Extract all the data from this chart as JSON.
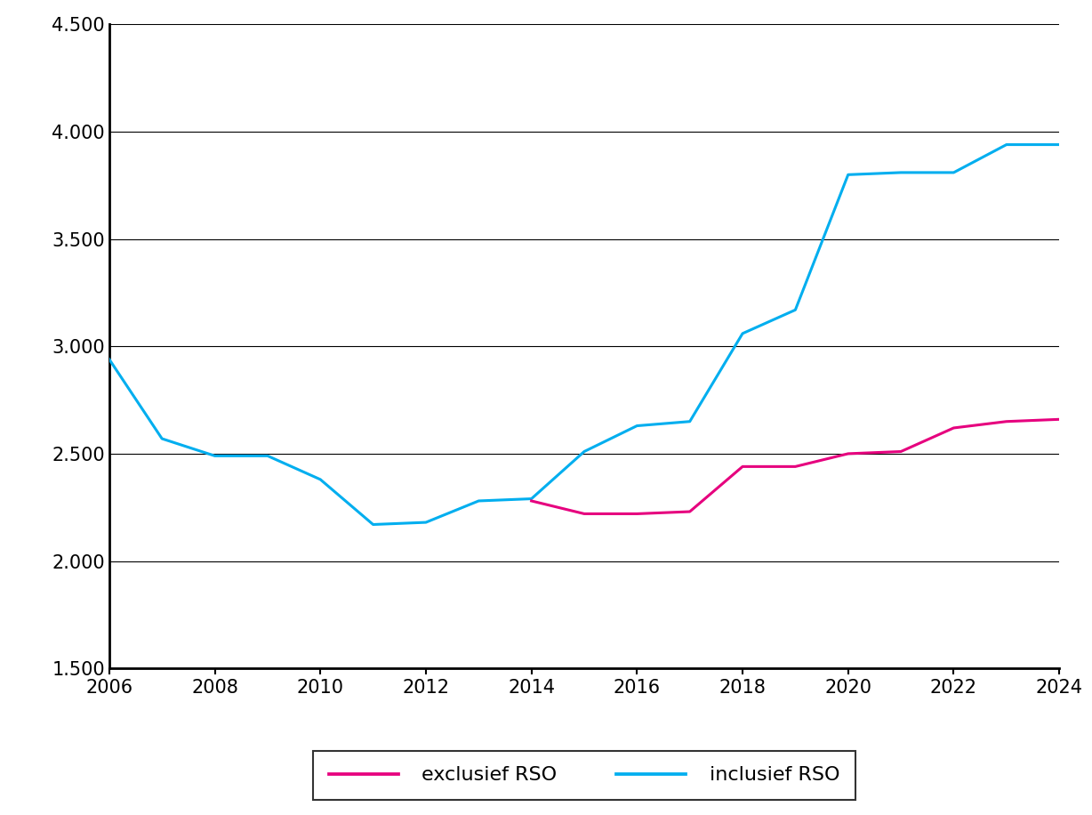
{
  "years_excl": [
    2014,
    2015,
    2016,
    2017,
    2018,
    2019,
    2020,
    2021,
    2022,
    2023,
    2024
  ],
  "values_excl": [
    2280,
    2220,
    2220,
    2230,
    2440,
    2440,
    2500,
    2510,
    2620,
    2650,
    2660
  ],
  "years_incl": [
    2006,
    2007,
    2008,
    2009,
    2010,
    2011,
    2012,
    2013,
    2014,
    2015,
    2016,
    2017,
    2018,
    2019,
    2020,
    2021,
    2022,
    2023,
    2024
  ],
  "values_incl": [
    2940,
    2570,
    2490,
    2490,
    2380,
    2170,
    2180,
    2280,
    2290,
    2510,
    2630,
    2650,
    3060,
    3170,
    3800,
    3810,
    3810,
    3940,
    3940
  ],
  "color_excl": "#e6007e",
  "color_incl": "#00aeef",
  "linewidth": 2.2,
  "xlim": [
    2006,
    2024
  ],
  "ylim": [
    1500,
    4500
  ],
  "yticks": [
    1500,
    2000,
    2500,
    3000,
    3500,
    4000,
    4500
  ],
  "xticks": [
    2006,
    2008,
    2010,
    2012,
    2014,
    2016,
    2018,
    2020,
    2022,
    2024
  ],
  "legend_excl": "exclusief RSO",
  "legend_incl": "inclusief RSO",
  "background_color": "#ffffff",
  "grid_color": "#000000",
  "spine_color": "#000000",
  "tick_fontsize": 15,
  "legend_fontsize": 16
}
